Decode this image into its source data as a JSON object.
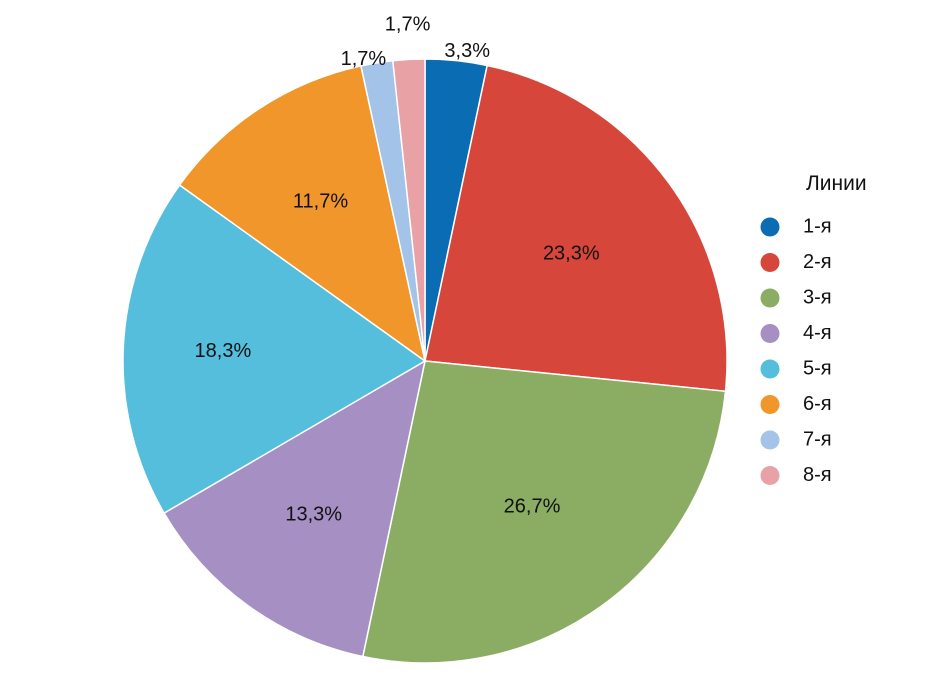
{
  "chart_data": {
    "type": "pie",
    "legend_title": "Линии",
    "legend_position": "right",
    "start": "top",
    "direction": "clockwise",
    "slices": [
      {
        "label": "1-я",
        "value": 3.3,
        "value_label": "3,3%",
        "color": "#0a6db4"
      },
      {
        "label": "2-я",
        "value": 23.3,
        "value_label": "23,3%",
        "color": "#d6463a"
      },
      {
        "label": "3-я",
        "value": 26.7,
        "value_label": "26,7%",
        "color": "#8aad63"
      },
      {
        "label": "4-я",
        "value": 13.3,
        "value_label": "13,3%",
        "color": "#a58fc3"
      },
      {
        "label": "5-я",
        "value": 18.3,
        "value_label": "18,3%",
        "color": "#54bedc"
      },
      {
        "label": "6-я",
        "value": 11.7,
        "value_label": "11,7%",
        "color": "#f0962b"
      },
      {
        "label": "7-я",
        "value": 1.7,
        "value_label": "1,7%",
        "color": "#a4c3e8"
      },
      {
        "label": "8-я",
        "value": 1.7,
        "value_label": "1,7%",
        "color": "#e8a2a6"
      }
    ]
  }
}
